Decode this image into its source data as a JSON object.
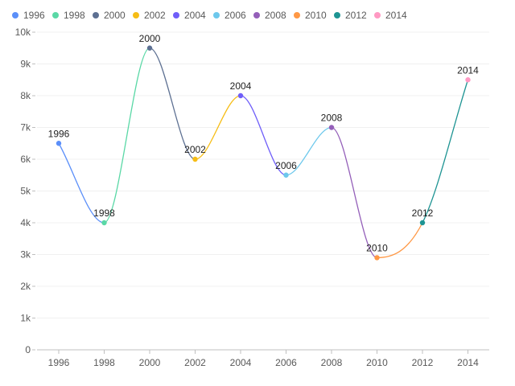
{
  "chart_data": {
    "type": "line",
    "title": "",
    "xlabel": "",
    "ylabel": "",
    "categories": [
      "1996",
      "1998",
      "2000",
      "2002",
      "2004",
      "2006",
      "2008",
      "2010",
      "2012",
      "2014"
    ],
    "values": [
      6500,
      4000,
      9500,
      6000,
      8000,
      5500,
      7000,
      2900,
      4000,
      8500
    ],
    "point_labels": [
      "1996",
      "1998",
      "2000",
      "2002",
      "2004",
      "2006",
      "2008",
      "2010",
      "2012",
      "2014"
    ],
    "colors": [
      "#5B8FF9",
      "#5AD8A6",
      "#5D7092",
      "#F6BD16",
      "#6F5EF9",
      "#6DC8EC",
      "#945FB9",
      "#FF9845",
      "#1E9493",
      "#FF99C3"
    ],
    "legend": [
      "1996",
      "1998",
      "2000",
      "2002",
      "2004",
      "2006",
      "2008",
      "2010",
      "2012",
      "2014"
    ],
    "legend_position": "top-left",
    "ylim": [
      0,
      10000
    ],
    "yticks": [
      0,
      1000,
      2000,
      3000,
      4000,
      5000,
      6000,
      7000,
      8000,
      9000,
      10000
    ],
    "ytick_labels": [
      "0",
      "1k",
      "2k",
      "3k",
      "4k",
      "5k",
      "6k",
      "7k",
      "8k",
      "9k",
      "10k"
    ],
    "grid": true,
    "smooth": true
  }
}
